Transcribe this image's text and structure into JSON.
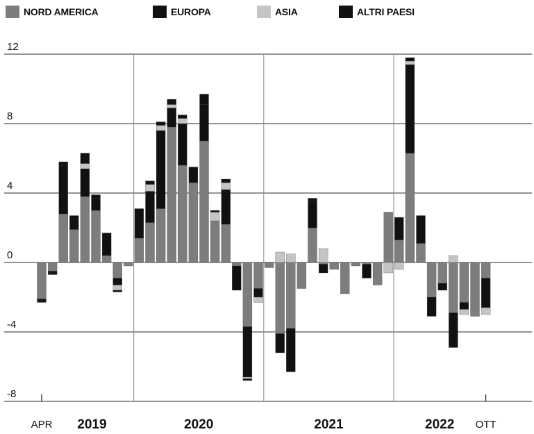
{
  "legend": [
    {
      "label": "NORD AMERICA",
      "color": "#7d7d7d"
    },
    {
      "label": "EUROPA",
      "color": "#111111"
    },
    {
      "label": "ASIA",
      "color": "#c4c4c4"
    },
    {
      "label": "ALTRI PAESI",
      "color": "#111111"
    }
  ],
  "chart_data": {
    "type": "bar",
    "stacked": true,
    "ylim": [
      -8,
      12
    ],
    "yticks": [
      "12",
      "8",
      "4",
      "0",
      "-4",
      "-8"
    ],
    "x_start_label": "APR",
    "x_end_label": "OTT",
    "year_labels": [
      "2019",
      "2020",
      "2021",
      "2022"
    ],
    "grid": "horizontal",
    "series": [
      {
        "name": "NORD AMERICA",
        "color": "#7d7d7d",
        "values": [
          -2.1,
          -0.5,
          2.8,
          1.9,
          3.8,
          3.0,
          0.4,
          -0.9,
          -0.2,
          1.4,
          2.3,
          3.1,
          7.8,
          5.6,
          4.6,
          7.0,
          2.4,
          2.2,
          -0.2,
          -3.7,
          -1.5,
          -0.3,
          -4.1,
          -3.8,
          -1.5,
          2.0,
          -0.1,
          -0.4,
          -1.8,
          -0.2,
          -0.1,
          -1.3,
          2.9,
          1.3,
          6.3,
          1.1,
          -2.0,
          -1.2,
          -2.9,
          -2.3,
          -3.1,
          -0.9
        ]
      },
      {
        "name": "EUROPA",
        "color": "#111111",
        "values": [
          -0.1,
          -0.1,
          2.8,
          0.6,
          1.6,
          0.7,
          1.3,
          -0.4,
          0.0,
          1.7,
          1.8,
          4.5,
          1.1,
          2.4,
          0.9,
          2.1,
          0.0,
          2.0,
          -1.4,
          -2.9,
          -0.5,
          0.0,
          -1.1,
          -2.5,
          0.0,
          1.5,
          -0.5,
          0.0,
          0.0,
          0.0,
          -0.8,
          0.0,
          0.0,
          1.3,
          5.1,
          1.6,
          -1.1,
          -0.4,
          -2.0,
          -0.4,
          0.0,
          -1.7
        ]
      },
      {
        "name": "ASIA",
        "color": "#c4c4c4",
        "values": [
          0.0,
          0.0,
          0.0,
          0.0,
          0.3,
          0.0,
          0.0,
          -0.3,
          0.0,
          0.0,
          0.4,
          0.3,
          0.2,
          0.3,
          0.0,
          0.0,
          0.5,
          0.4,
          0.0,
          -0.1,
          -0.3,
          0.0,
          0.6,
          0.5,
          0.0,
          0.0,
          0.8,
          0.0,
          0.0,
          0.0,
          0.0,
          0.0,
          -0.6,
          -0.4,
          0.2,
          0.0,
          0.0,
          0.0,
          0.4,
          -0.3,
          0.0,
          -0.4
        ]
      },
      {
        "name": "ALTRI PAESI",
        "color": "#111111",
        "values": [
          -0.1,
          -0.1,
          0.2,
          0.2,
          0.6,
          0.2,
          0.0,
          -0.1,
          0.0,
          0.0,
          0.2,
          0.2,
          0.3,
          0.2,
          0.0,
          0.6,
          0.1,
          0.2,
          0.0,
          -0.1,
          0.0,
          0.0,
          0.0,
          0.0,
          0.0,
          0.2,
          0.0,
          0.0,
          0.0,
          0.0,
          0.0,
          0.0,
          0.0,
          0.0,
          0.2,
          0.0,
          0.0,
          0.0,
          0.0,
          0.0,
          0.0,
          0.0
        ]
      }
    ]
  }
}
